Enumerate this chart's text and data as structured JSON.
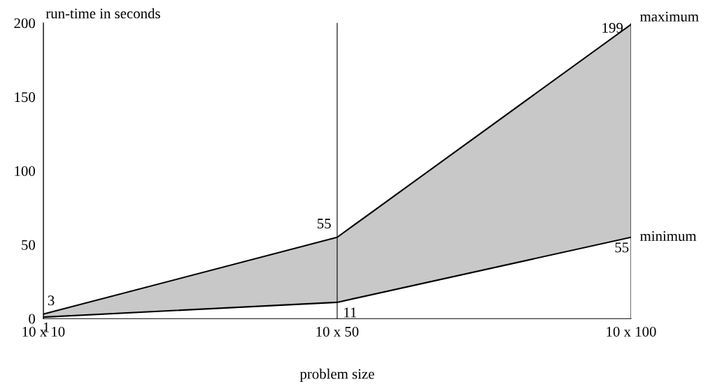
{
  "chart_data": {
    "type": "area",
    "xlabel": "problem size",
    "ylabel": "run-time in seconds",
    "categories": [
      "10 x 10",
      "10 x 50",
      "10 x 100"
    ],
    "series": [
      {
        "name": "maximum",
        "color": "#c8c8c8",
        "values": [
          3,
          55,
          199
        ]
      },
      {
        "name": "minimum",
        "color": "#ffffff",
        "values": [
          1,
          11,
          55
        ]
      }
    ],
    "ylim": [
      0,
      200
    ],
    "yticks": [
      0,
      50,
      100,
      150,
      200
    ],
    "grid": "x",
    "data_labels": true,
    "marker": "none",
    "line_style": "solid"
  }
}
